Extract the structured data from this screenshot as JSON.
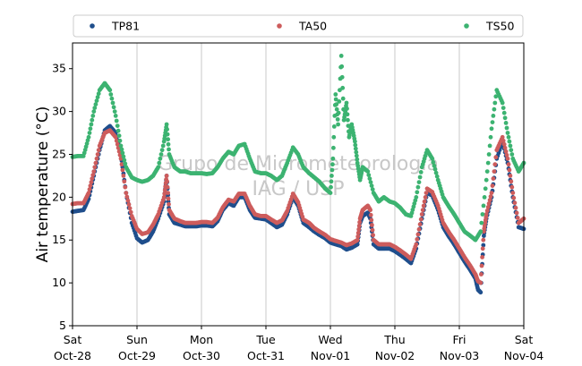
{
  "chart_data": {
    "type": "scatter",
    "title": "",
    "xlabel": "",
    "ylabel": "Air temperature (°C)",
    "ylim": [
      5,
      38
    ],
    "y_ticks": [
      5,
      10,
      15,
      20,
      25,
      30,
      35
    ],
    "x_range_days": [
      0,
      7
    ],
    "x_ticks": [
      {
        "day": 0,
        "weekday": "Sat",
        "date": "Oct-28"
      },
      {
        "day": 1,
        "weekday": "Sun",
        "date": "Oct-29"
      },
      {
        "day": 2,
        "weekday": "Mon",
        "date": "Oct-30"
      },
      {
        "day": 3,
        "weekday": "Tue",
        "date": "Oct-31"
      },
      {
        "day": 4,
        "weekday": "Wed",
        "date": "Nov-01"
      },
      {
        "day": 5,
        "weekday": "Thu",
        "date": "Nov-02"
      },
      {
        "day": 6,
        "weekday": "Fri",
        "date": "Nov-03"
      },
      {
        "day": 7,
        "weekday": "Sat",
        "date": "Nov-04"
      }
    ],
    "grid": {
      "x": true,
      "y": false
    },
    "legend": {
      "placement": "top",
      "entries": [
        "TP81",
        "TA50",
        "TS50"
      ]
    },
    "watermark": {
      "line1": "Grupo de Micrometeorologia",
      "line2": "IAG / USP"
    },
    "series": [
      {
        "name": "TP81",
        "color": "#1f4e8c",
        "points": [
          [
            0.0,
            18.3
          ],
          [
            0.08,
            18.4
          ],
          [
            0.17,
            18.5
          ],
          [
            0.25,
            19.8
          ],
          [
            0.33,
            22.5
          ],
          [
            0.42,
            25.5
          ],
          [
            0.5,
            27.8
          ],
          [
            0.58,
            28.3
          ],
          [
            0.67,
            27.5
          ],
          [
            0.75,
            25.0
          ],
          [
            0.83,
            20.5
          ],
          [
            0.92,
            17.0
          ],
          [
            1.0,
            15.2
          ],
          [
            1.08,
            14.7
          ],
          [
            1.17,
            15.0
          ],
          [
            1.25,
            16.0
          ],
          [
            1.33,
            17.5
          ],
          [
            1.42,
            19.5
          ],
          [
            1.46,
            22.5
          ],
          [
            1.5,
            18.0
          ],
          [
            1.58,
            17.0
          ],
          [
            1.67,
            16.8
          ],
          [
            1.75,
            16.6
          ],
          [
            1.83,
            16.6
          ],
          [
            1.92,
            16.6
          ],
          [
            2.0,
            16.7
          ],
          [
            2.08,
            16.7
          ],
          [
            2.17,
            16.6
          ],
          [
            2.25,
            17.2
          ],
          [
            2.33,
            18.5
          ],
          [
            2.42,
            19.3
          ],
          [
            2.5,
            19.0
          ],
          [
            2.58,
            20.0
          ],
          [
            2.67,
            20.0
          ],
          [
            2.75,
            18.5
          ],
          [
            2.83,
            17.6
          ],
          [
            2.92,
            17.5
          ],
          [
            3.0,
            17.4
          ],
          [
            3.08,
            17.0
          ],
          [
            3.17,
            16.5
          ],
          [
            3.25,
            16.8
          ],
          [
            3.33,
            18.0
          ],
          [
            3.42,
            20.0
          ],
          [
            3.5,
            19.0
          ],
          [
            3.58,
            17.0
          ],
          [
            3.67,
            16.5
          ],
          [
            3.75,
            16.0
          ],
          [
            3.83,
            15.6
          ],
          [
            3.92,
            15.2
          ],
          [
            4.0,
            14.7
          ],
          [
            4.08,
            14.5
          ],
          [
            4.17,
            14.3
          ],
          [
            4.25,
            13.9
          ],
          [
            4.33,
            14.1
          ],
          [
            4.42,
            14.5
          ],
          [
            4.46,
            17.0
          ],
          [
            4.5,
            17.8
          ],
          [
            4.58,
            18.2
          ],
          [
            4.62,
            17.5
          ],
          [
            4.67,
            14.5
          ],
          [
            4.75,
            14.0
          ],
          [
            4.83,
            14.0
          ],
          [
            4.92,
            14.0
          ],
          [
            5.0,
            13.7
          ],
          [
            5.08,
            13.3
          ],
          [
            5.17,
            12.8
          ],
          [
            5.25,
            12.3
          ],
          [
            5.33,
            14.0
          ],
          [
            5.42,
            17.5
          ],
          [
            5.5,
            20.5
          ],
          [
            5.58,
            20.2
          ],
          [
            5.67,
            18.5
          ],
          [
            5.75,
            16.5
          ],
          [
            5.83,
            15.5
          ],
          [
            5.92,
            14.5
          ],
          [
            6.0,
            13.5
          ],
          [
            6.08,
            12.5
          ],
          [
            6.17,
            11.5
          ],
          [
            6.25,
            10.5
          ],
          [
            6.29,
            9.2
          ],
          [
            6.33,
            8.9
          ],
          [
            6.38,
            15.5
          ],
          [
            6.42,
            17.5
          ],
          [
            6.5,
            20.0
          ],
          [
            6.58,
            24.5
          ],
          [
            6.67,
            26.5
          ],
          [
            6.75,
            24.0
          ],
          [
            6.83,
            20.0
          ],
          [
            6.92,
            16.5
          ],
          [
            7.0,
            16.3
          ]
        ]
      },
      {
        "name": "TA50",
        "color": "#cd5c5c",
        "points": [
          [
            0.0,
            19.2
          ],
          [
            0.08,
            19.3
          ],
          [
            0.17,
            19.3
          ],
          [
            0.25,
            20.5
          ],
          [
            0.33,
            23.0
          ],
          [
            0.42,
            26.0
          ],
          [
            0.5,
            27.5
          ],
          [
            0.58,
            27.8
          ],
          [
            0.67,
            27.0
          ],
          [
            0.75,
            24.5
          ],
          [
            0.83,
            20.5
          ],
          [
            0.92,
            17.8
          ],
          [
            1.0,
            16.3
          ],
          [
            1.08,
            15.7
          ],
          [
            1.17,
            15.9
          ],
          [
            1.25,
            16.8
          ],
          [
            1.33,
            18.0
          ],
          [
            1.42,
            20.0
          ],
          [
            1.46,
            22.5
          ],
          [
            1.5,
            18.5
          ],
          [
            1.58,
            17.5
          ],
          [
            1.67,
            17.2
          ],
          [
            1.75,
            17.0
          ],
          [
            1.83,
            17.0
          ],
          [
            1.92,
            17.0
          ],
          [
            2.0,
            17.1
          ],
          [
            2.08,
            17.1
          ],
          [
            2.17,
            17.0
          ],
          [
            2.25,
            17.6
          ],
          [
            2.33,
            18.8
          ],
          [
            2.42,
            19.7
          ],
          [
            2.5,
            19.5
          ],
          [
            2.58,
            20.4
          ],
          [
            2.67,
            20.4
          ],
          [
            2.75,
            19.0
          ],
          [
            2.83,
            18.0
          ],
          [
            2.92,
            17.8
          ],
          [
            3.0,
            17.8
          ],
          [
            3.08,
            17.4
          ],
          [
            3.17,
            17.0
          ],
          [
            3.25,
            17.3
          ],
          [
            3.33,
            18.4
          ],
          [
            3.42,
            20.4
          ],
          [
            3.5,
            19.4
          ],
          [
            3.58,
            17.4
          ],
          [
            3.67,
            17.0
          ],
          [
            3.75,
            16.4
          ],
          [
            3.83,
            16.0
          ],
          [
            3.92,
            15.6
          ],
          [
            4.0,
            15.1
          ],
          [
            4.08,
            14.9
          ],
          [
            4.17,
            14.7
          ],
          [
            4.25,
            14.4
          ],
          [
            4.33,
            14.6
          ],
          [
            4.42,
            15.0
          ],
          [
            4.46,
            17.5
          ],
          [
            4.5,
            18.5
          ],
          [
            4.58,
            19.0
          ],
          [
            4.62,
            18.5
          ],
          [
            4.67,
            15.0
          ],
          [
            4.75,
            14.5
          ],
          [
            4.83,
            14.5
          ],
          [
            4.92,
            14.5
          ],
          [
            5.0,
            14.2
          ],
          [
            5.08,
            13.8
          ],
          [
            5.17,
            13.3
          ],
          [
            5.25,
            12.8
          ],
          [
            5.33,
            14.5
          ],
          [
            5.42,
            18.0
          ],
          [
            5.5,
            21.0
          ],
          [
            5.58,
            20.6
          ],
          [
            5.67,
            19.0
          ],
          [
            5.75,
            17.0
          ],
          [
            5.83,
            16.0
          ],
          [
            5.92,
            15.0
          ],
          [
            6.0,
            14.0
          ],
          [
            6.08,
            13.0
          ],
          [
            6.17,
            12.0
          ],
          [
            6.25,
            11.0
          ],
          [
            6.29,
            10.2
          ],
          [
            6.33,
            10.0
          ],
          [
            6.38,
            16.0
          ],
          [
            6.42,
            18.0
          ],
          [
            6.5,
            20.5
          ],
          [
            6.58,
            25.5
          ],
          [
            6.67,
            27.0
          ],
          [
            6.75,
            24.5
          ],
          [
            6.83,
            20.5
          ],
          [
            6.92,
            17.0
          ],
          [
            7.0,
            17.5
          ]
        ]
      },
      {
        "name": "TS50",
        "color": "#3cb371",
        "points": [
          [
            0.0,
            24.7
          ],
          [
            0.08,
            24.8
          ],
          [
            0.17,
            24.8
          ],
          [
            0.25,
            27.0
          ],
          [
            0.33,
            30.0
          ],
          [
            0.42,
            32.5
          ],
          [
            0.5,
            33.3
          ],
          [
            0.58,
            32.5
          ],
          [
            0.67,
            29.5
          ],
          [
            0.75,
            26.0
          ],
          [
            0.83,
            23.5
          ],
          [
            0.92,
            22.3
          ],
          [
            1.0,
            22.0
          ],
          [
            1.08,
            21.8
          ],
          [
            1.17,
            22.0
          ],
          [
            1.25,
            22.5
          ],
          [
            1.33,
            23.5
          ],
          [
            1.42,
            26.5
          ],
          [
            1.46,
            28.5
          ],
          [
            1.5,
            25.0
          ],
          [
            1.58,
            23.5
          ],
          [
            1.67,
            23.0
          ],
          [
            1.75,
            23.0
          ],
          [
            1.83,
            22.8
          ],
          [
            1.92,
            22.8
          ],
          [
            2.0,
            22.8
          ],
          [
            2.08,
            22.7
          ],
          [
            2.17,
            22.8
          ],
          [
            2.25,
            23.5
          ],
          [
            2.33,
            24.5
          ],
          [
            2.42,
            25.3
          ],
          [
            2.5,
            25.0
          ],
          [
            2.58,
            26.0
          ],
          [
            2.67,
            26.2
          ],
          [
            2.75,
            24.5
          ],
          [
            2.83,
            23.0
          ],
          [
            2.92,
            22.8
          ],
          [
            3.0,
            22.8
          ],
          [
            3.08,
            22.5
          ],
          [
            3.17,
            22.0
          ],
          [
            3.25,
            22.5
          ],
          [
            3.33,
            24.0
          ],
          [
            3.42,
            25.8
          ],
          [
            3.5,
            25.0
          ],
          [
            3.58,
            23.5
          ],
          [
            3.67,
            22.8
          ],
          [
            3.75,
            22.3
          ],
          [
            3.83,
            21.8
          ],
          [
            3.92,
            21.0
          ],
          [
            4.0,
            20.5
          ],
          [
            4.04,
            24.5
          ],
          [
            4.08,
            32.0
          ],
          [
            4.12,
            28.5
          ],
          [
            4.17,
            36.5
          ],
          [
            4.21,
            29.0
          ],
          [
            4.25,
            31.0
          ],
          [
            4.29,
            27.0
          ],
          [
            4.33,
            28.5
          ],
          [
            4.38,
            26.5
          ],
          [
            4.42,
            24.0
          ],
          [
            4.46,
            22.0
          ],
          [
            4.5,
            23.5
          ],
          [
            4.58,
            23.0
          ],
          [
            4.67,
            20.5
          ],
          [
            4.75,
            19.5
          ],
          [
            4.83,
            20.0
          ],
          [
            4.92,
            19.5
          ],
          [
            5.0,
            19.3
          ],
          [
            5.08,
            18.8
          ],
          [
            5.17,
            18.0
          ],
          [
            5.25,
            17.8
          ],
          [
            5.33,
            20.0
          ],
          [
            5.42,
            23.5
          ],
          [
            5.5,
            25.5
          ],
          [
            5.58,
            24.5
          ],
          [
            5.67,
            22.0
          ],
          [
            5.75,
            20.0
          ],
          [
            5.83,
            19.0
          ],
          [
            5.92,
            18.0
          ],
          [
            6.0,
            17.0
          ],
          [
            6.08,
            16.0
          ],
          [
            6.17,
            15.5
          ],
          [
            6.25,
            15.0
          ],
          [
            6.33,
            16.0
          ],
          [
            6.42,
            22.0
          ],
          [
            6.5,
            28.0
          ],
          [
            6.58,
            32.5
          ],
          [
            6.67,
            31.0
          ],
          [
            6.75,
            27.5
          ],
          [
            6.83,
            24.5
          ],
          [
            6.92,
            23.0
          ],
          [
            7.0,
            24.0
          ]
        ]
      }
    ]
  }
}
